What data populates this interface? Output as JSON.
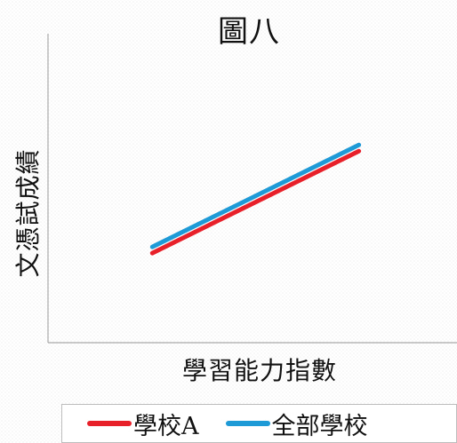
{
  "chart_data": {
    "type": "line",
    "title": "圖八",
    "xlabel": "學習能力指數",
    "ylabel": "文憑試成績",
    "x": [
      0,
      1
    ],
    "series": [
      {
        "name": "學校A",
        "values": [
          0.29,
          0.62
        ],
        "color": "#e8202a"
      },
      {
        "name": "全部學校",
        "values": [
          0.31,
          0.64
        ],
        "color": "#1e9ad6"
      }
    ],
    "xlim": [
      0,
      1
    ],
    "ylim": [
      0,
      1
    ],
    "xticks": [],
    "yticks": [],
    "grid": false,
    "legend_position": "bottom"
  }
}
